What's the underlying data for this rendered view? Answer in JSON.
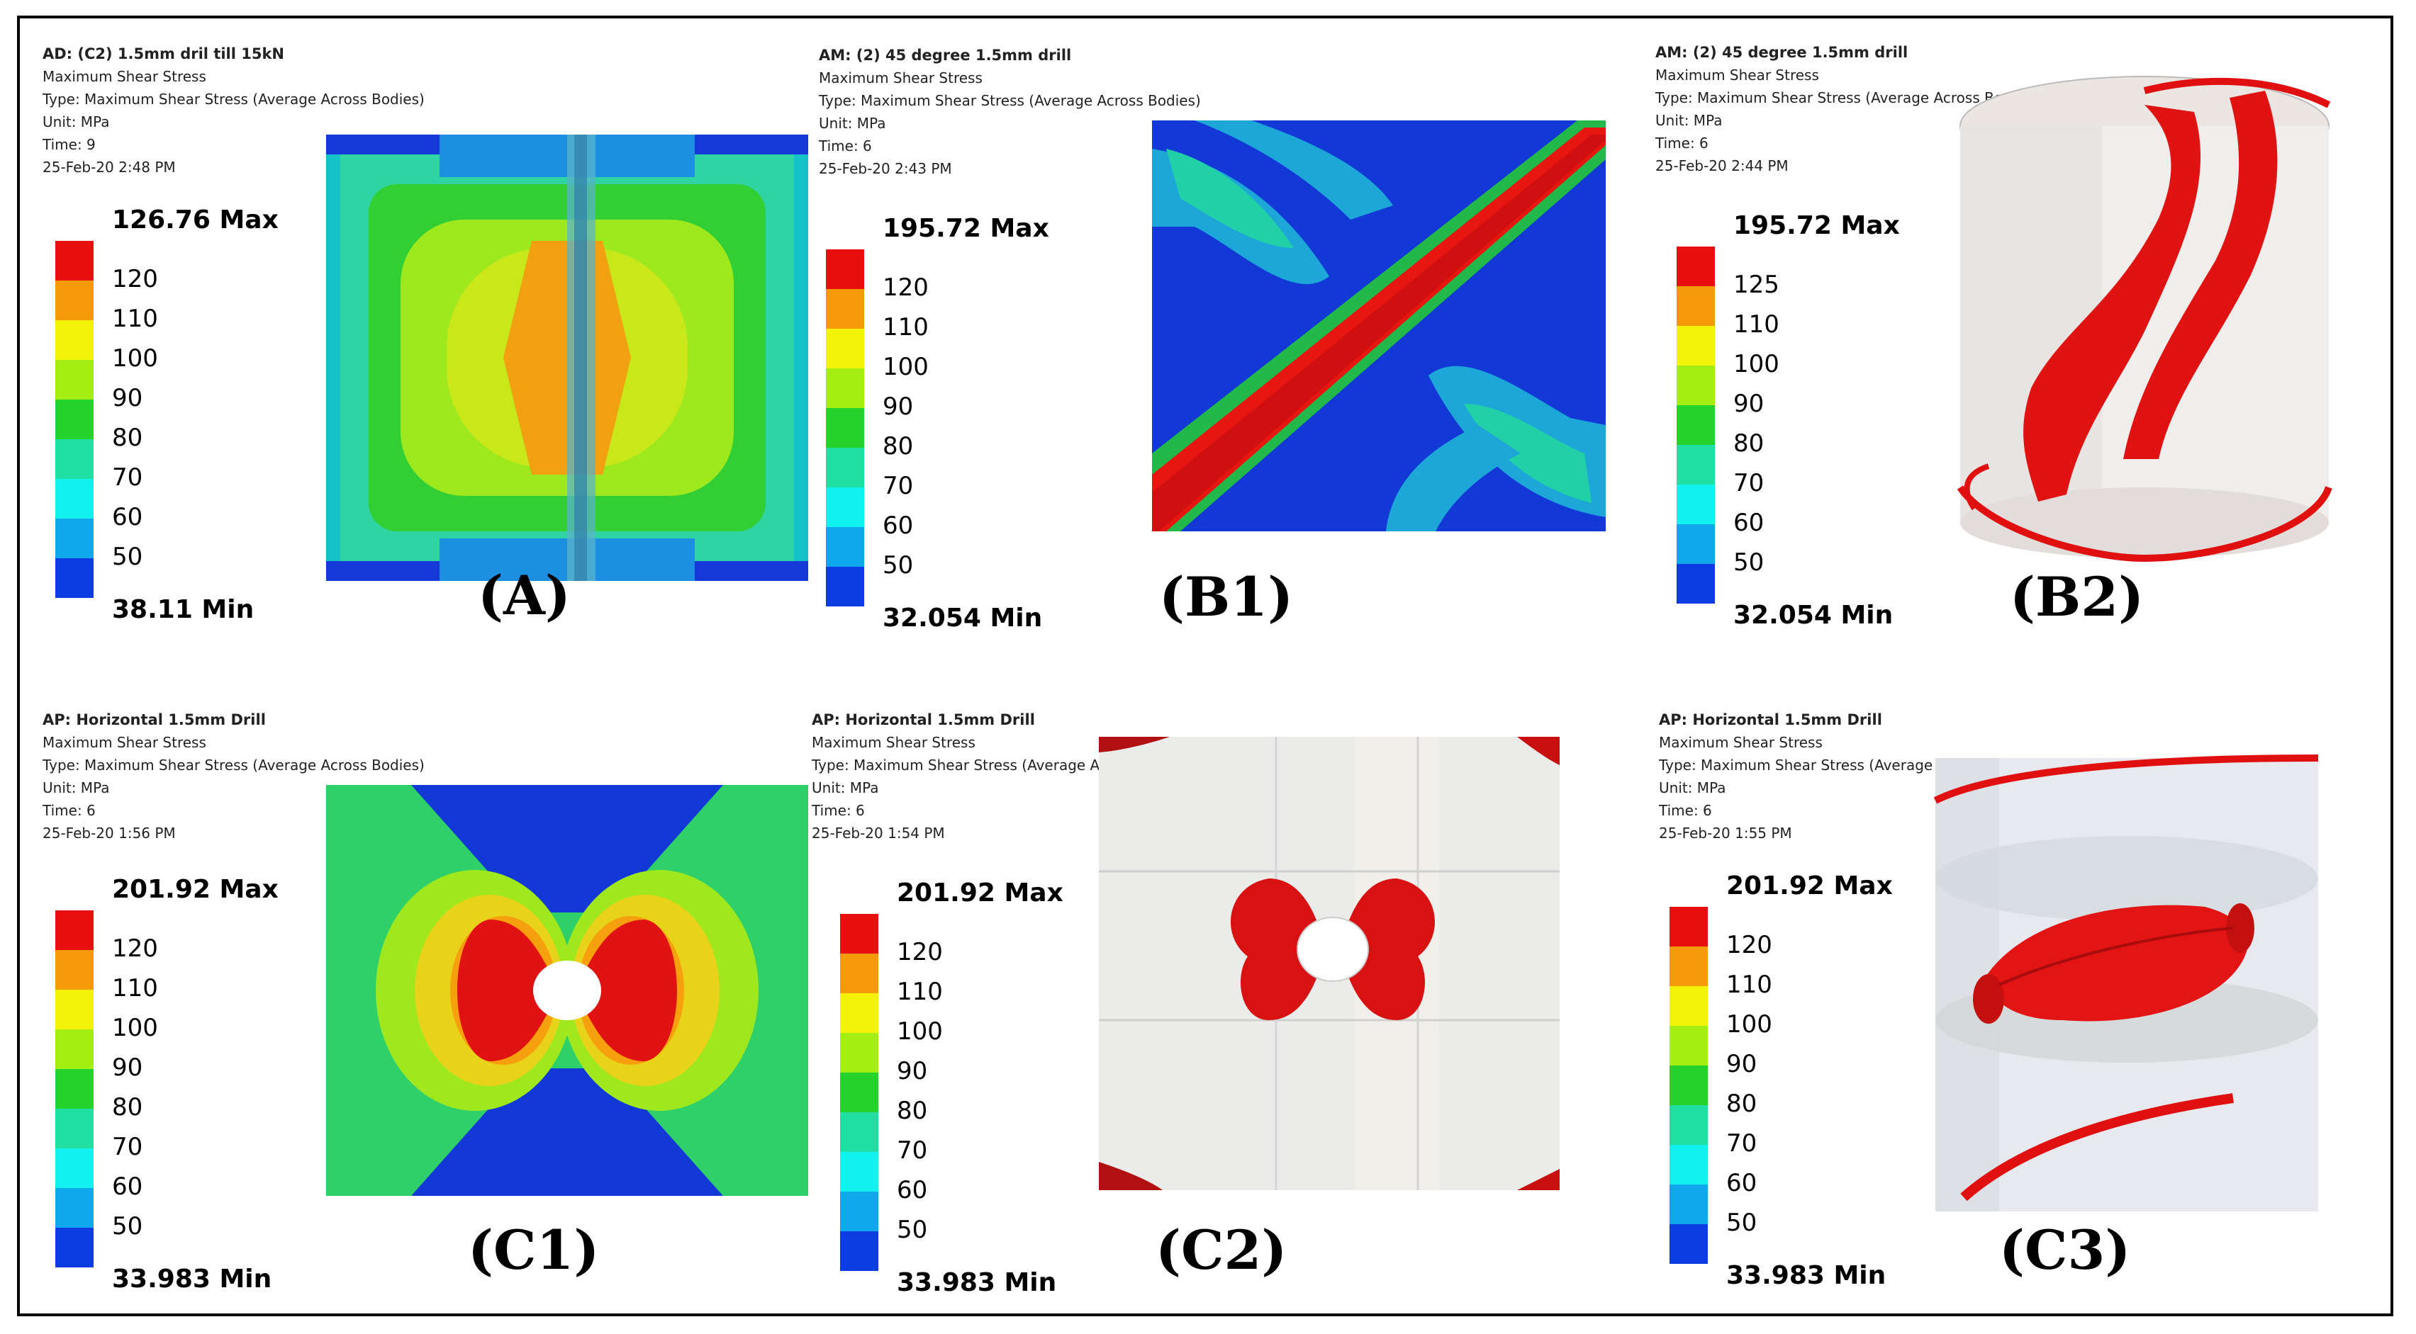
{
  "palette": [
    "#e8100e",
    "#f59a09",
    "#f5f20a",
    "#a4ee14",
    "#24d32c",
    "#20dfa1",
    "#12f1ee",
    "#0fa8ea",
    "#0c3de3"
  ],
  "panels": [
    {
      "id": "A",
      "title": "AD: (C2) 1.5mm dril till 15kN",
      "line2": "Maximum Shear Stress",
      "line3": "Type: Maximum Shear Stress (Average Across Bodies)",
      "line4": "Unit: MPa",
      "line5": "Time: 9",
      "line6": "25-Feb-20 2:48 PM",
      "max": "126.76 Max",
      "min": "38.11 Min",
      "ticks": [
        "120",
        "110",
        "100",
        "90",
        "80",
        "70",
        "60",
        "50"
      ],
      "caption": "(A)"
    },
    {
      "id": "B1",
      "title": "AM: (2) 45 degree 1.5mm drill",
      "line2": "Maximum Shear Stress",
      "line3": "Type: Maximum Shear Stress (Average Across Bodies)",
      "line4": "Unit: MPa",
      "line5": "Time: 6",
      "line6": "25-Feb-20 2:43 PM",
      "max": "195.72 Max",
      "min": "32.054 Min",
      "ticks": [
        "120",
        "110",
        "100",
        "90",
        "80",
        "70",
        "60",
        "50"
      ],
      "caption": "(B1)"
    },
    {
      "id": "B2",
      "title": "AM: (2) 45 degree 1.5mm drill",
      "line2": "Maximum Shear Stress",
      "line3": "Type: Maximum Shear Stress (Average Across Bodies)",
      "line4": "Unit: MPa",
      "line5": "Time: 6",
      "line6": "25-Feb-20 2:44 PM",
      "max": "195.72 Max",
      "min": "32.054 Min",
      "ticks": [
        "125",
        "110",
        "100",
        "90",
        "80",
        "70",
        "60",
        "50"
      ],
      "caption": "(B2)"
    },
    {
      "id": "C1",
      "title": "AP: Horizontal 1.5mm Drill",
      "line2": "Maximum Shear Stress",
      "line3": "Type: Maximum Shear Stress (Average Across Bodies)",
      "line4": "Unit: MPa",
      "line5": "Time: 6",
      "line6": "25-Feb-20 1:56 PM",
      "max": "201.92 Max",
      "min": "33.983 Min",
      "ticks": [
        "120",
        "110",
        "100",
        "90",
        "80",
        "70",
        "60",
        "50"
      ],
      "caption": "(C1)"
    },
    {
      "id": "C2",
      "title": "AP: Horizontal 1.5mm Drill",
      "line2": "Maximum Shear Stress",
      "line3": "Type: Maximum Shear Stress (Average Across Bodies)",
      "line4": "Unit: MPa",
      "line5": "Time: 6",
      "line6": "25-Feb-20 1:54 PM",
      "max": "201.92 Max",
      "min": "33.983 Min",
      "ticks": [
        "120",
        "110",
        "100",
        "90",
        "80",
        "70",
        "60",
        "50"
      ],
      "caption": "(C2)"
    },
    {
      "id": "C3",
      "title": "AP: Horizontal 1.5mm Drill",
      "line2": "Maximum Shear Stress",
      "line3": "Type: Maximum Shear Stress (Average Across Bodies)",
      "line4": "Unit: MPa",
      "line5": "Time: 6",
      "line6": "25-Feb-20 1:55 PM",
      "max": "201.92 Max",
      "min": "33.983 Min",
      "ticks": [
        "120",
        "110",
        "100",
        "90",
        "80",
        "70",
        "60",
        "50"
      ],
      "caption": "(C3)"
    }
  ]
}
